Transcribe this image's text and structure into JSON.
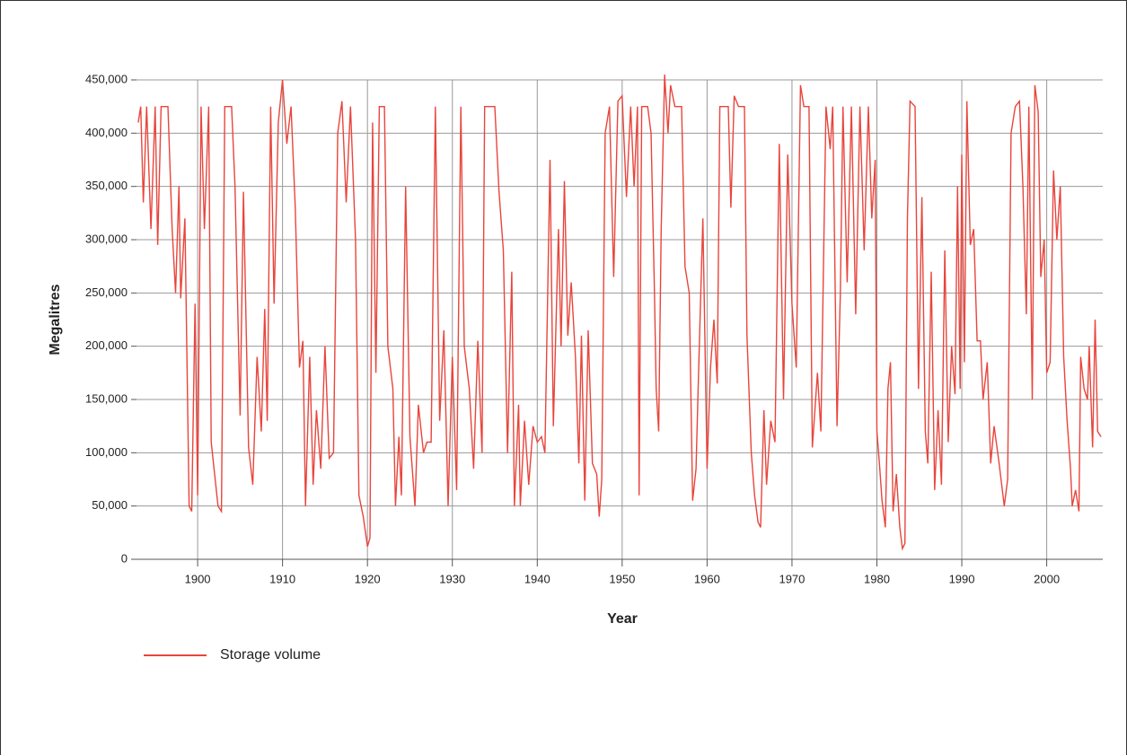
{
  "chart_data": {
    "type": "line",
    "x_label": "Year",
    "y_label": "Megalitres",
    "xlim": [
      1892.8,
      2006.6
    ],
    "xticks": [
      1900,
      1910,
      1920,
      1930,
      1940,
      1950,
      1960,
      1970,
      1980,
      1990,
      2000
    ],
    "ylim": [
      0,
      450000
    ],
    "yticks": [
      0,
      {
        "value": 50000,
        "label": "50,000"
      },
      {
        "value": 100000,
        "label": "100,000"
      },
      {
        "value": 150000,
        "label": "150,000"
      },
      {
        "value": 200000,
        "label": "200,000"
      },
      {
        "value": 250000,
        "label": "250,000"
      },
      {
        "value": 300000,
        "label": "300,000"
      },
      {
        "value": 350000,
        "label": "350,000"
      },
      {
        "value": 400000,
        "label": "400,000"
      },
      {
        "value": 450000,
        "label": "450,000"
      }
    ],
    "grid": true,
    "legend": "bottom-left",
    "x": [
      1893,
      1893.3,
      1893.6,
      1894,
      1894.5,
      1895,
      1895.3,
      1895.7,
      1896.5,
      1897,
      1897.4,
      1897.8,
      1898,
      1898.5,
      1899,
      1899.3,
      1899.7,
      1900,
      1900.4,
      1900.8,
      1901.3,
      1901.6,
      1902.4,
      1902.8,
      1903.2,
      1904,
      1904.4,
      1905,
      1905.4,
      1906,
      1906.5,
      1907,
      1907.5,
      1907.9,
      1908.2,
      1908.6,
      1909,
      1909.5,
      1910,
      1910.5,
      1911,
      1911.5,
      1912,
      1912.4,
      1912.7,
      1913.2,
      1913.6,
      1914,
      1914.5,
      1915,
      1915.5,
      1916,
      1916.5,
      1917,
      1917.5,
      1918,
      1918.6,
      1919,
      1919.5,
      1920,
      1920.3,
      1920.6,
      1921,
      1921.4,
      1922,
      1922.4,
      1923,
      1923.3,
      1923.7,
      1924,
      1924.5,
      1925,
      1925.6,
      1926,
      1926.6,
      1927,
      1927.5,
      1928,
      1928.5,
      1929,
      1929.5,
      1930,
      1930.5,
      1931,
      1931.4,
      1932,
      1932.5,
      1933,
      1933.5,
      1933.8,
      1935,
      1935.5,
      1936,
      1936.5,
      1937,
      1937.3,
      1937.8,
      1938,
      1938.5,
      1939,
      1939.5,
      1940,
      1940.5,
      1940.9,
      1941.5,
      1941.9,
      1942.5,
      1942.8,
      1943.2,
      1943.6,
      1944,
      1944.5,
      1944.9,
      1945.2,
      1945.6,
      1946,
      1946.5,
      1947,
      1947.3,
      1947.6,
      1948,
      1948.5,
      1949,
      1949.5,
      1950,
      1950.5,
      1951,
      1951.4,
      1951.8,
      1952,
      1952.3,
      1953,
      1953.4,
      1953.8,
      1954,
      1954.3,
      1954.6,
      1955,
      1955.4,
      1955.7,
      1956.2,
      1957,
      1957.4,
      1957.9,
      1958.3,
      1958.7,
      1959,
      1959.5,
      1960,
      1960.4,
      1960.8,
      1961.2,
      1961.5,
      1962.5,
      1962.8,
      1963.2,
      1963.7,
      1964.4,
      1964.7,
      1965.2,
      1965.6,
      1966,
      1966.3,
      1966.7,
      1967,
      1967.5,
      1968,
      1968.5,
      1969,
      1969.5,
      1970,
      1970.5,
      1971,
      1971.4,
      1972,
      1972.4,
      1973,
      1973.4,
      1974,
      1974.5,
      1974.8,
      1975.3,
      1975.7,
      1976,
      1976.5,
      1977,
      1977.5,
      1978,
      1978.5,
      1979,
      1979.4,
      1979.8,
      1980,
      1980.3,
      1980.6,
      1981,
      1981.3,
      1981.6,
      1981.9,
      1982.3,
      1982.7,
      1983,
      1983.3,
      1983.6,
      1983.9,
      1984.5,
      1984.9,
      1985.3,
      1985.7,
      1986,
      1986.4,
      1986.8,
      1987.2,
      1987.6,
      1988,
      1988.4,
      1988.8,
      1989.2,
      1989.5,
      1989.8,
      1990,
      1990.3,
      1990.6,
      1991,
      1991.4,
      1991.8,
      1992.2,
      1992.5,
      1993,
      1993.4,
      1993.8,
      1994.4,
      1995,
      1995.4,
      1995.8,
      1996.3,
      1996.8,
      1997.2,
      1997.6,
      1997.9,
      1998.3,
      1998.6,
      1999,
      1999.3,
      1999.7,
      2000,
      2000.4,
      2000.8,
      2001.2,
      2001.6,
      2002,
      2002.4,
      2002.8,
      2003,
      2003.4,
      2003.8,
      2004,
      2004.4,
      2004.8,
      2005,
      2005.4,
      2005.7,
      2006,
      2006.4
    ],
    "series": [
      {
        "name": "Storage volume",
        "color": "#e8453c",
        "values": [
          410000,
          425000,
          335000,
          425000,
          310000,
          425000,
          295000,
          425000,
          425000,
          310000,
          250000,
          350000,
          245000,
          320000,
          50000,
          45000,
          240000,
          60000,
          425000,
          310000,
          425000,
          110000,
          50000,
          45000,
          425000,
          425000,
          350000,
          135000,
          345000,
          105000,
          70000,
          190000,
          120000,
          235000,
          130000,
          425000,
          240000,
          410000,
          450000,
          390000,
          425000,
          330000,
          180000,
          205000,
          50000,
          190000,
          70000,
          140000,
          85000,
          200000,
          95000,
          100000,
          400000,
          430000,
          335000,
          425000,
          300000,
          60000,
          40000,
          12000,
          20000,
          410000,
          175000,
          425000,
          425000,
          200000,
          160000,
          50000,
          115000,
          60000,
          350000,
          115000,
          50000,
          145000,
          100000,
          110000,
          110000,
          425000,
          130000,
          215000,
          50000,
          190000,
          65000,
          425000,
          200000,
          160000,
          85000,
          205000,
          100000,
          425000,
          425000,
          345000,
          290000,
          100000,
          270000,
          50000,
          145000,
          50000,
          130000,
          70000,
          125000,
          110000,
          115000,
          100000,
          375000,
          125000,
          310000,
          200000,
          355000,
          210000,
          260000,
          190000,
          90000,
          210000,
          55000,
          215000,
          90000,
          80000,
          40000,
          75000,
          400000,
          425000,
          265000,
          430000,
          435000,
          340000,
          425000,
          350000,
          425000,
          60000,
          425000,
          425000,
          400000,
          250000,
          160000,
          120000,
          310000,
          455000,
          400000,
          445000,
          425000,
          425000,
          275000,
          250000,
          55000,
          85000,
          175000,
          320000,
          85000,
          180000,
          225000,
          165000,
          425000,
          425000,
          330000,
          435000,
          425000,
          425000,
          210000,
          100000,
          60000,
          35000,
          30000,
          140000,
          70000,
          130000,
          110000,
          390000,
          150000,
          380000,
          240000,
          180000,
          445000,
          425000,
          425000,
          105000,
          175000,
          120000,
          425000,
          385000,
          425000,
          125000,
          250000,
          425000,
          260000,
          425000,
          230000,
          425000,
          290000,
          425000,
          320000,
          375000,
          120000,
          90000,
          55000,
          30000,
          160000,
          185000,
          45000,
          80000,
          30000,
          10000,
          15000,
          320000,
          430000,
          425000,
          160000,
          340000,
          120000,
          90000,
          270000,
          65000,
          140000,
          70000,
          290000,
          110000,
          200000,
          155000,
          350000,
          160000,
          380000,
          185000,
          430000,
          295000,
          310000,
          205000,
          205000,
          150000,
          185000,
          90000,
          125000,
          90000,
          50000,
          75000,
          400000,
          425000,
          430000,
          350000,
          230000,
          425000,
          150000,
          445000,
          420000,
          265000,
          300000,
          175000,
          185000,
          365000,
          300000,
          350000,
          190000,
          130000,
          85000,
          50000,
          65000,
          45000,
          190000,
          160000,
          150000,
          200000,
          105000,
          225000,
          120000,
          115000
        ]
      }
    ]
  }
}
